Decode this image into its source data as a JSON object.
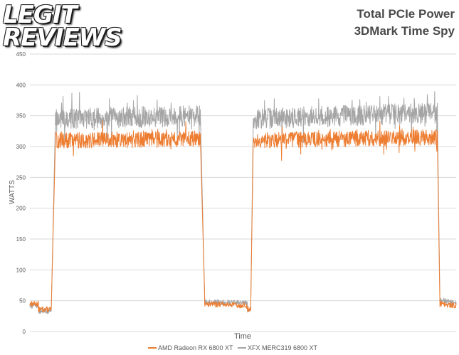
{
  "logo": {
    "line1": "LEGIT",
    "line2": "REVIEWS"
  },
  "chart_data": {
    "type": "line",
    "title": "Total PCIe Power",
    "subtitle": "3DMark Time Spy",
    "xlabel": "Time",
    "ylabel": "WATTS",
    "ylim": [
      0,
      450
    ],
    "yticks": [
      "0",
      "50",
      "100",
      "150",
      "200",
      "250",
      "300",
      "350",
      "400",
      "450"
    ],
    "grid": true,
    "legend_position": "bottom",
    "series": [
      {
        "name": "AMD Radeon RX 6800 XT",
        "color": "#ED7D31",
        "segments": [
          {
            "x": [
              0,
              2
            ],
            "y": [
              45,
              45
            ]
          },
          {
            "x": [
              2,
              5
            ],
            "y": [
              36,
              36
            ]
          },
          {
            "x": [
              5,
              6
            ],
            "y": [
              36,
              310
            ],
            "exact": true
          },
          {
            "x": [
              6,
              40
            ],
            "y": [
              310,
              312
            ]
          },
          {
            "x": [
              40,
              41
            ],
            "y": [
              312,
              55
            ],
            "exact": true
          },
          {
            "x": [
              41,
              51
            ],
            "y": [
              45,
              42
            ]
          },
          {
            "x": [
              51,
              51.8
            ],
            "y": [
              37,
              37
            ]
          },
          {
            "x": [
              51.8,
              52.4
            ],
            "y": [
              37,
              310
            ],
            "exact": true
          },
          {
            "x": [
              52.4,
              95.6
            ],
            "y": [
              310,
              315
            ]
          },
          {
            "x": [
              95.6,
              96.2
            ],
            "y": [
              315,
              40
            ],
            "exact": true
          },
          {
            "x": [
              96.2,
              100
            ],
            "y": [
              45,
              42
            ]
          }
        ]
      },
      {
        "name": "XFX MERC319 6800 XT",
        "color": "#A5A5A5",
        "segments": [
          {
            "x": [
              0,
              2
            ],
            "y": [
              42,
              42
            ]
          },
          {
            "x": [
              2,
              5
            ],
            "y": [
              33,
              33
            ]
          },
          {
            "x": [
              5,
              6
            ],
            "y": [
              33,
              345
            ],
            "exact": true
          },
          {
            "x": [
              6,
              40
            ],
            "y": [
              345,
              350
            ]
          },
          {
            "x": [
              40,
              41
            ],
            "y": [
              350,
              58
            ],
            "exact": true
          },
          {
            "x": [
              41,
              51
            ],
            "y": [
              48,
              46
            ]
          },
          {
            "x": [
              51,
              51.8
            ],
            "y": [
              35,
              35
            ]
          },
          {
            "x": [
              51.8,
              52.4
            ],
            "y": [
              35,
              345
            ],
            "exact": true
          },
          {
            "x": [
              52.4,
              95.6
            ],
            "y": [
              345,
              355
            ]
          },
          {
            "x": [
              95.6,
              96.2
            ],
            "y": [
              355,
              50
            ],
            "exact": true
          },
          {
            "x": [
              96.2,
              100
            ],
            "y": [
              52,
              45
            ]
          }
        ]
      }
    ]
  }
}
